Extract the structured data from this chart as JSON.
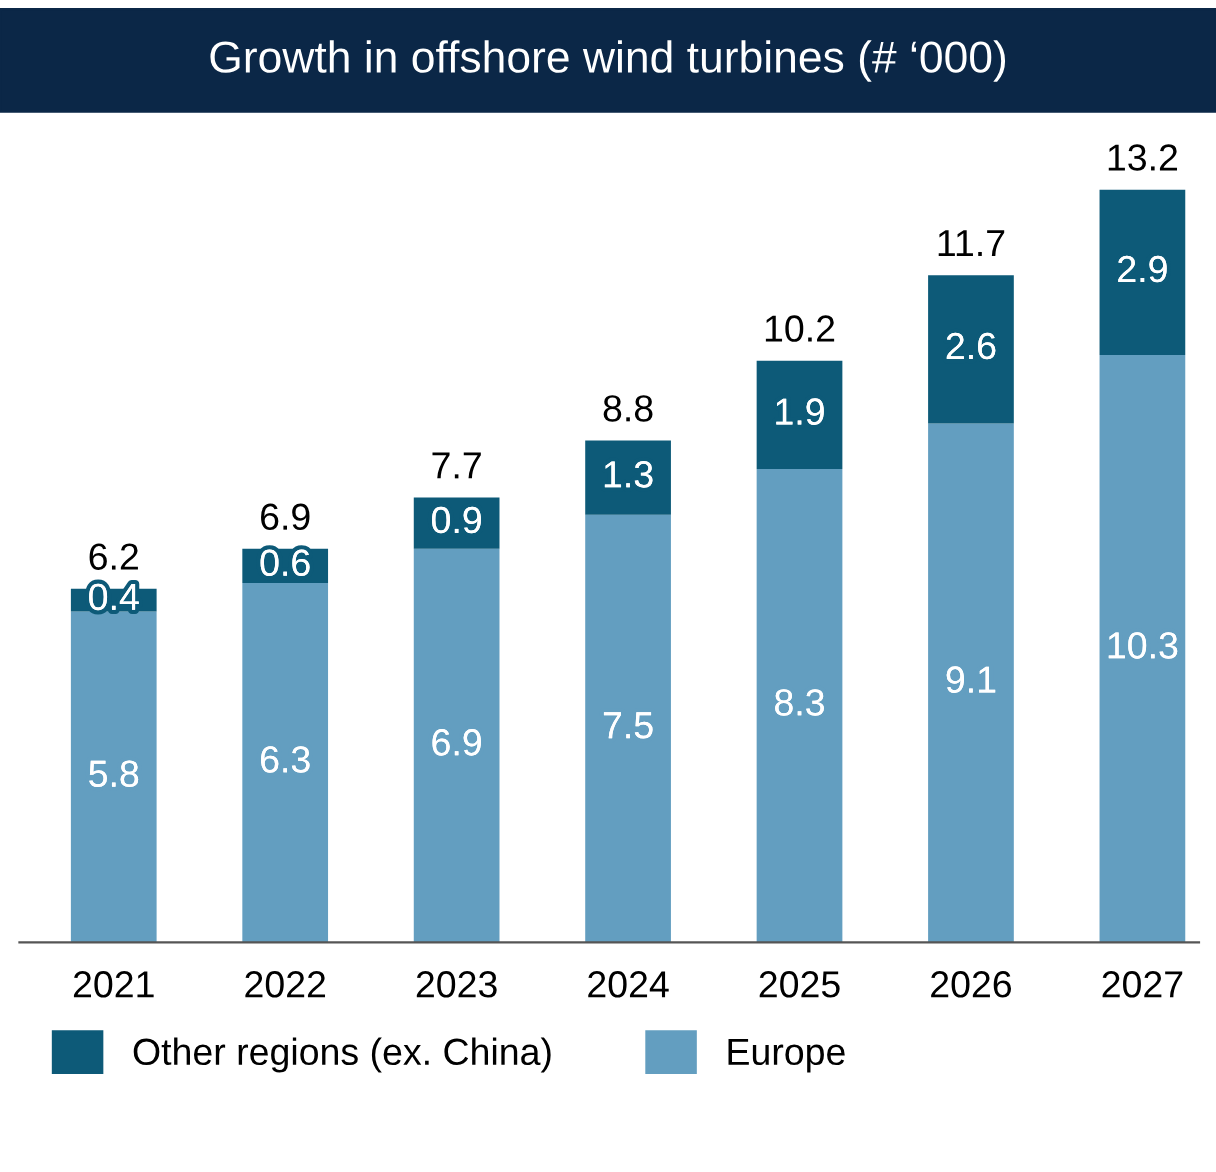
{
  "chart_data": {
    "type": "bar",
    "title": "Growth in offshore wind turbines (# ‘000)",
    "categories": [
      "2021",
      "2022",
      "2023",
      "2024",
      "2025",
      "2026",
      "2027"
    ],
    "stacked": true,
    "data_labels": true,
    "legend": "bottom",
    "grid": false,
    "series": [
      {
        "name": "Europe",
        "color": "#639ec0",
        "values": [
          5.8,
          6.3,
          6.9,
          7.5,
          8.3,
          9.1,
          10.3
        ]
      },
      {
        "name": "Other regions (ex. China)",
        "color": "#0d5a78",
        "values": [
          0.4,
          0.6,
          0.9,
          1.3,
          1.9,
          2.6,
          2.9
        ]
      }
    ],
    "totals": [
      "6.2",
      "6.9",
      "7.7",
      "8.8",
      "10.2",
      "11.7",
      "13.2"
    ]
  }
}
